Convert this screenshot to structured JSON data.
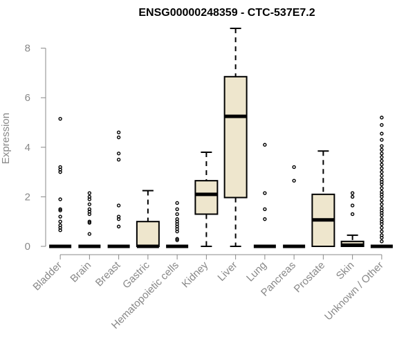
{
  "chart_data": {
    "type": "boxplot",
    "title": "ENSG00000248359 - CTC-537E7.2",
    "ylabel": "Expression",
    "xlabel": "",
    "ylim": [
      0,
      8.8
    ],
    "yticks": [
      0,
      2,
      4,
      6,
      8
    ],
    "grid": false,
    "colors": {
      "box_fill": "#EEE6CD",
      "stroke": "#000000",
      "axis_text": "#888888",
      "title": "#000000"
    },
    "categories": [
      "Bladder",
      "Brain",
      "Breast",
      "Gastric",
      "Hematopoietic cells",
      "Kidney",
      "Liver",
      "Lung",
      "Pancreas",
      "Prostate",
      "Skin",
      "Unknown / Other"
    ],
    "boxes": [
      {
        "category": "Bladder",
        "q1": 0,
        "median": 0,
        "q3": 0,
        "whisker_low": 0,
        "whisker_high": 0,
        "outliers": [
          5.15,
          3.2,
          3.1,
          3.0,
          1.9,
          1.5,
          1.45,
          1.2,
          1.0,
          0.85,
          0.75,
          0.65
        ]
      },
      {
        "category": "Brain",
        "q1": 0,
        "median": 0,
        "q3": 0,
        "whisker_low": 0,
        "whisker_high": 0,
        "outliers": [
          2.15,
          2.0,
          1.9,
          1.7,
          1.5,
          1.4,
          1.3,
          1.0,
          0.95,
          0.5
        ]
      },
      {
        "category": "Breast",
        "q1": 0,
        "median": 0,
        "q3": 0,
        "whisker_low": 0,
        "whisker_high": 0,
        "outliers": [
          4.6,
          4.4,
          3.75,
          3.5,
          1.65,
          1.2,
          1.1,
          0.8
        ]
      },
      {
        "category": "Gastric",
        "q1": 0,
        "median": 0,
        "q3": 1.0,
        "whisker_low": 0,
        "whisker_high": 2.25,
        "outliers": []
      },
      {
        "category": "Hematopoietic cells",
        "q1": 0,
        "median": 0,
        "q3": 0,
        "whisker_low": 0,
        "whisker_high": 0,
        "outliers": [
          1.75,
          1.5,
          1.3,
          1.1,
          1.0,
          0.9,
          0.8,
          0.7,
          0.6,
          0.3,
          0.25
        ]
      },
      {
        "category": "Kidney",
        "q1": 1.3,
        "median": 2.1,
        "q3": 2.65,
        "whisker_low": 0,
        "whisker_high": 3.8,
        "outliers": []
      },
      {
        "category": "Liver",
        "q1": 1.97,
        "median": 5.25,
        "q3": 6.85,
        "whisker_low": 0,
        "whisker_high": 8.8,
        "outliers": []
      },
      {
        "category": "Lung",
        "q1": 0,
        "median": 0,
        "q3": 0,
        "whisker_low": 0,
        "whisker_high": 0,
        "outliers": [
          4.1,
          2.15,
          1.5,
          1.1
        ]
      },
      {
        "category": "Pancreas",
        "q1": 0,
        "median": 0,
        "q3": 0,
        "whisker_low": 0,
        "whisker_high": 0,
        "outliers": [
          3.2,
          2.65
        ]
      },
      {
        "category": "Prostate",
        "q1": 0,
        "median": 1.07,
        "q3": 2.1,
        "whisker_low": 0,
        "whisker_high": 3.85,
        "outliers": []
      },
      {
        "category": "Skin",
        "q1": 0,
        "median": 0.05,
        "q3": 0.2,
        "whisker_low": 0,
        "whisker_high": 0.45,
        "outliers": [
          2.15,
          2.0,
          1.65,
          1.3
        ]
      },
      {
        "category": "Unknown / Other",
        "q1": 0,
        "median": 0,
        "q3": 0,
        "whisker_low": 0,
        "whisker_high": 0,
        "outliers": [
          5.2,
          4.9,
          4.55,
          4.3,
          4.05,
          3.9,
          3.75,
          3.6,
          3.45,
          3.3,
          3.15,
          3.0,
          2.85,
          2.7,
          2.6,
          2.5,
          2.35,
          2.2,
          2.1,
          2.0,
          1.85,
          1.7,
          1.55,
          1.45,
          1.35,
          1.25,
          1.1,
          1.0,
          0.9,
          0.75,
          0.6,
          0.45,
          0.35,
          0.2
        ]
      }
    ]
  }
}
